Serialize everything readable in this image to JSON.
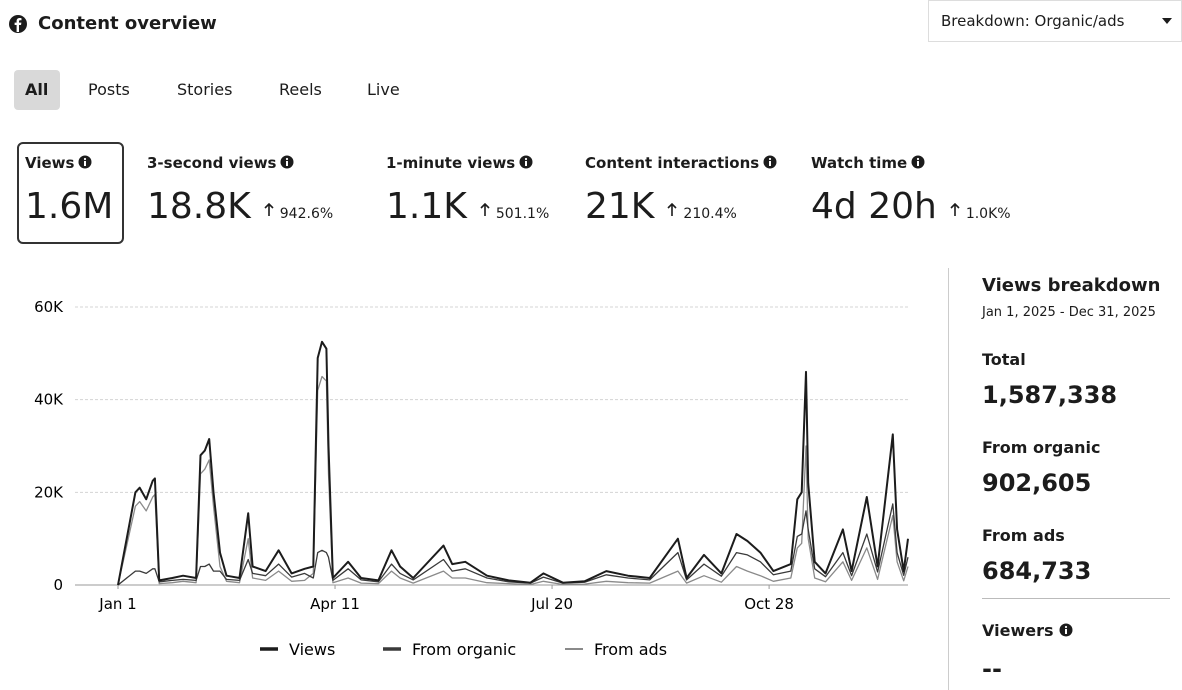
{
  "header": {
    "title": "Content overview",
    "dropdown": "Breakdown: Organic/ads"
  },
  "tabs": [
    "All",
    "Posts",
    "Stories",
    "Reels",
    "Live"
  ],
  "metrics": [
    {
      "label": "Views",
      "value": "1.6M"
    },
    {
      "label": "3-second views",
      "value": "18.8K",
      "change": "942.6%"
    },
    {
      "label": "1-minute views",
      "value": "1.1K",
      "change": "501.1%"
    },
    {
      "label": "Content interactions",
      "value": "21K",
      "change": "210.4%"
    },
    {
      "label": "Watch time",
      "value": "4d 20h",
      "change": "1.0K%"
    }
  ],
  "chart_data": {
    "type": "line",
    "x": [
      0,
      8,
      10,
      13,
      16,
      17,
      19,
      25,
      30,
      36,
      38,
      40,
      42,
      44,
      47,
      50,
      56,
      60,
      62,
      68,
      74,
      80,
      86,
      90,
      92,
      94,
      96,
      97,
      99,
      106,
      112,
      120,
      126,
      130,
      136,
      150,
      154,
      160,
      170,
      180,
      190,
      196,
      205,
      215,
      225,
      235,
      245,
      258,
      262,
      270,
      278,
      285,
      290,
      296,
      302,
      310,
      313,
      315,
      317,
      318,
      321,
      326,
      334,
      338,
      345,
      350,
      357,
      359,
      362,
      364
    ],
    "xlim": [
      0,
      364
    ],
    "xticks": [
      {
        "value": 0,
        "label": "Jan 1"
      },
      {
        "value": 100,
        "label": "Apr 11"
      },
      {
        "value": 200,
        "label": "Jul 20"
      },
      {
        "value": 300,
        "label": "Oct 28"
      }
    ],
    "ylim": [
      0,
      60000
    ],
    "yticks": [
      0,
      {
        "value": 20000,
        "label": "20K"
      },
      {
        "value": 40000,
        "label": "40K"
      },
      {
        "value": 60000,
        "label": "60K"
      }
    ],
    "grid": true,
    "legend": "bottom",
    "series": [
      {
        "name": "Views",
        "color": "#1c1c1c",
        "values": [
          0,
          20000,
          21000,
          18500,
          22500,
          23000,
          1000,
          1500,
          2000,
          1500,
          28000,
          29000,
          31500,
          20000,
          7000,
          2000,
          1500,
          15500,
          4000,
          3000,
          7500,
          2500,
          3500,
          4000,
          49000,
          52500,
          51000,
          30000,
          1500,
          5000,
          1500,
          1000,
          7500,
          4000,
          1500,
          8500,
          4500,
          5000,
          2000,
          1000,
          500,
          2500,
          500,
          800,
          3000,
          2000,
          1500,
          10000,
          1500,
          6500,
          2500,
          11000,
          9500,
          7000,
          3000,
          4500,
          18500,
          20000,
          46000,
          22000,
          5000,
          2500,
          12000,
          3000,
          19000,
          4000,
          32500,
          12000,
          3000,
          10000
        ]
      },
      {
        "name": "From organic",
        "color": "#3a3a3a",
        "values": [
          0,
          3000,
          3000,
          2500,
          3500,
          3500,
          700,
          1000,
          1200,
          1000,
          4000,
          4000,
          4500,
          3000,
          3000,
          1200,
          1000,
          5500,
          2500,
          2000,
          4500,
          1700,
          2500,
          1500,
          7000,
          7500,
          7000,
          6000,
          1000,
          3500,
          1100,
          700,
          4500,
          2500,
          1100,
          5500,
          3000,
          3500,
          1500,
          700,
          400,
          1700,
          400,
          600,
          2200,
          1500,
          1100,
          7000,
          1100,
          4500,
          1900,
          7000,
          6500,
          5000,
          2200,
          3000,
          10500,
          11000,
          16000,
          12000,
          3500,
          1800,
          7000,
          2000,
          11000,
          2800,
          17500,
          7000,
          2100,
          6000
        ]
      },
      {
        "name": "From ads",
        "color": "#8a8a8a",
        "values": [
          0,
          17000,
          18000,
          16000,
          19000,
          19500,
          300,
          500,
          800,
          500,
          24000,
          25000,
          27000,
          17000,
          4000,
          800,
          500,
          10000,
          1500,
          1000,
          3000,
          800,
          1000,
          2500,
          42000,
          45000,
          44000,
          24000,
          500,
          1500,
          400,
          300,
          3000,
          1500,
          400,
          3000,
          1500,
          1500,
          500,
          300,
          100,
          800,
          100,
          200,
          800,
          500,
          400,
          3000,
          400,
          2000,
          600,
          4000,
          3000,
          2000,
          800,
          1500,
          8000,
          9000,
          30000,
          10000,
          1500,
          700,
          5000,
          1000,
          8000,
          1200,
          15000,
          5000,
          900,
          4000
        ]
      }
    ]
  },
  "breakdown": {
    "title": "Views breakdown",
    "range": "Jan 1, 2025 - Dec 31, 2025",
    "items": [
      {
        "label": "Total",
        "value": "1,587,338"
      },
      {
        "label": "From organic",
        "value": "902,605"
      },
      {
        "label": "From ads",
        "value": "684,733"
      }
    ],
    "viewers": {
      "label": "Viewers",
      "value": "--"
    }
  }
}
